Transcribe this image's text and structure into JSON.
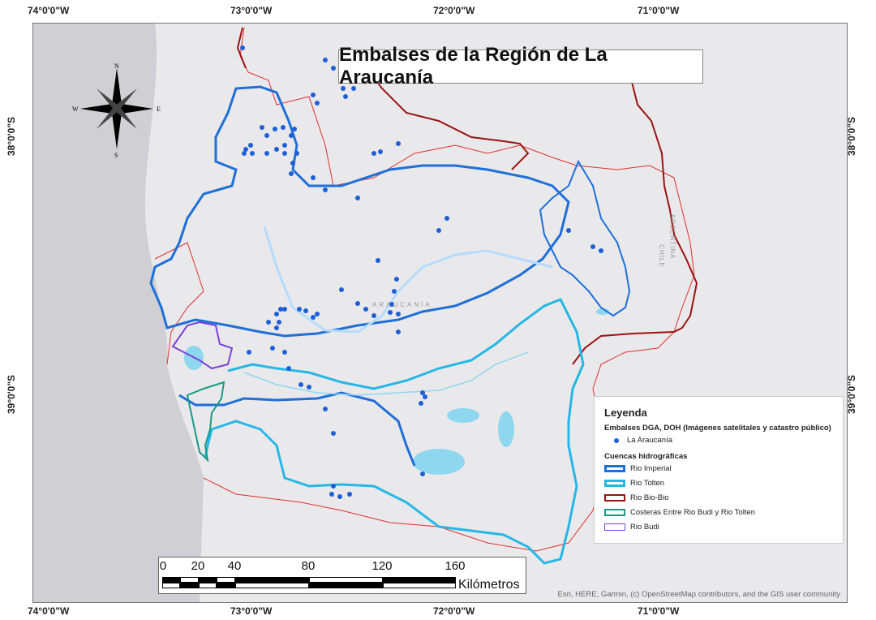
{
  "title": "Embalses de la Región de La Araucanía",
  "top_lon_labels": [
    "74°0'0\"W",
    "73°0'0\"W",
    "72°0'0\"W",
    "71°0'0\"W"
  ],
  "bottom_lon_labels": [
    "74°0'0\"W",
    "73°0'0\"W",
    "72°0'0\"W",
    "71°0'0\"W"
  ],
  "left_lat_labels": [
    "38°0'0\"S",
    "39°0'0\"S"
  ],
  "right_lat_labels": [
    "38°0'0\"S",
    "39°0'0\"S"
  ],
  "compass": {
    "n": "N",
    "s": "S",
    "e": "E",
    "w": "W"
  },
  "map_labels": {
    "region": "ARAUCANÍA",
    "chile": "CHILE",
    "argentina": "ARGENTINA"
  },
  "legend": {
    "title": "Leyenda",
    "points_header": "Embalses DGA, DOH (Imágenes satelitales y catastro público)",
    "points_item": "La Araucanía",
    "basins_header": "Cuencas hidrográficas",
    "basins": [
      {
        "label": "Rio Imperial",
        "color": "#1f6fd9"
      },
      {
        "label": "Rio Tolten",
        "color": "#27b7e6"
      },
      {
        "label": "Rio Bio-Bio",
        "color": "#9b1111"
      },
      {
        "label": "Costeras Entre Rio Budi y Rio Tolten",
        "color": "#1a9a86"
      },
      {
        "label": "Rio Budi",
        "color": "#7b43d9"
      }
    ]
  },
  "scalebar": {
    "ticks": [
      "0",
      "20",
      "40",
      "80",
      "120",
      "160"
    ],
    "unit": "Kilómetros"
  },
  "attribution": "Esri, HERE, Garmin, (c) OpenStreetMap contributors, and the GIS user community",
  "colors": {
    "point": "#1f5fd6",
    "land": "#e9e9eb",
    "sea": "#cfcfd4",
    "lake": "#8fd7ef",
    "river": "#b5dcff",
    "region_border": "#e03030"
  }
}
